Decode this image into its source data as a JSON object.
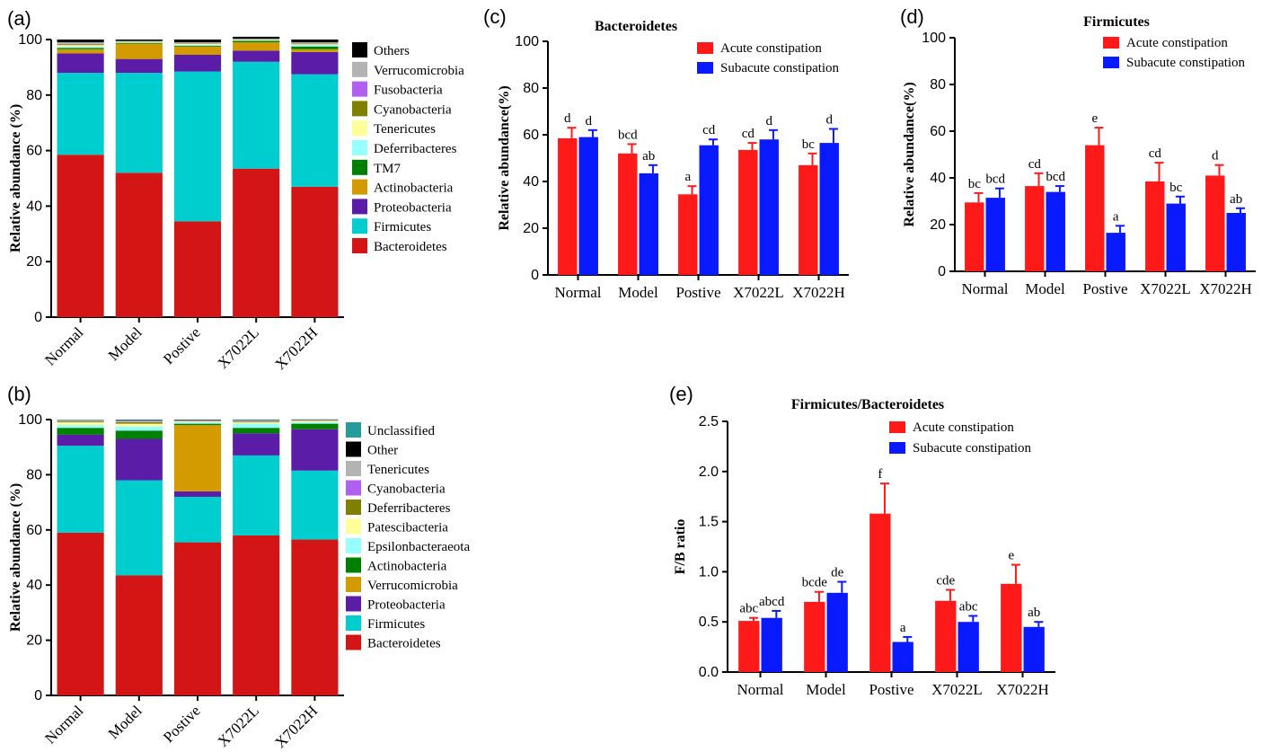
{
  "chart_data": [
    {
      "id": "a",
      "panel_label": "(a)",
      "type": "bar",
      "stacked": true,
      "ylabel": "Relative abundance (%)",
      "ylim": [
        0,
        100
      ],
      "yticks": [
        0,
        20,
        40,
        60,
        80,
        100
      ],
      "categories": [
        "Normal",
        "Model",
        "Postive",
        "X7022L",
        "X7022H"
      ],
      "legend_position": "right",
      "series": [
        {
          "name": "Bacteroidetes",
          "color": "#d41515",
          "values": [
            58.5,
            52,
            34.5,
            53.5,
            47
          ]
        },
        {
          "name": "Firmicutes",
          "color": "#00cdcd",
          "values": [
            29.5,
            36,
            54,
            38.5,
            40.5
          ]
        },
        {
          "name": "Proteobacteria",
          "color": "#5b1ca7",
          "values": [
            7,
            5,
            6,
            4,
            8
          ]
        },
        {
          "name": "Actinobacteria",
          "color": "#d39b00",
          "values": [
            1.5,
            5.5,
            3,
            3,
            1
          ]
        },
        {
          "name": "TM7",
          "color": "#008000",
          "values": [
            0.5,
            0.3,
            0.3,
            0.5,
            1
          ]
        },
        {
          "name": "Deferribacteres",
          "color": "#98ffff",
          "values": [
            0.5,
            0.2,
            0.3,
            0.2,
            0.5
          ]
        },
        {
          "name": "Tenericutes",
          "color": "#ffff99",
          "values": [
            0.5,
            0.2,
            0.3,
            0.2,
            0.3
          ]
        },
        {
          "name": "Cyanobacteria",
          "color": "#808000",
          "values": [
            0.3,
            0.1,
            0.1,
            0.1,
            0.2
          ]
        },
        {
          "name": "Fusobacteria",
          "color": "#b15ff0",
          "values": [
            0.1,
            0.1,
            0.1,
            0.1,
            0.1
          ]
        },
        {
          "name": "Verrucomicrobia",
          "color": "#b3b3b3",
          "values": [
            0.6,
            0.1,
            0.4,
            0.2,
            0.4
          ]
        },
        {
          "name": "Others",
          "color": "#000000",
          "values": [
            1,
            0.5,
            1,
            0.7,
            1
          ]
        }
      ]
    },
    {
      "id": "b",
      "panel_label": "(b)",
      "type": "bar",
      "stacked": true,
      "ylabel": "Relative abundance (%)",
      "ylim": [
        0,
        100
      ],
      "yticks": [
        0,
        20,
        40,
        60,
        80,
        100
      ],
      "categories": [
        "Normal",
        "Model",
        "Postive",
        "X7022L",
        "X7022H"
      ],
      "legend_position": "right",
      "series": [
        {
          "name": "Bacteroidetes",
          "color": "#d41515",
          "values": [
            59,
            43.5,
            55.5,
            58,
            56.5
          ]
        },
        {
          "name": "Firmicutes",
          "color": "#00cdcd",
          "values": [
            31.5,
            34.5,
            16.5,
            29,
            25
          ]
        },
        {
          "name": "Proteobacteria",
          "color": "#5b1ca7",
          "values": [
            4,
            15,
            2,
            8,
            15
          ]
        },
        {
          "name": "Verrucomicrobia",
          "color": "#d39b00",
          "values": [
            0,
            0,
            24,
            0,
            0
          ]
        },
        {
          "name": "Actinobacteria",
          "color": "#008000",
          "values": [
            2.5,
            3,
            0.5,
            2,
            2
          ]
        },
        {
          "name": "Epsilonbacteraeota",
          "color": "#98ffff",
          "values": [
            1,
            1.5,
            0.5,
            1.5,
            0.5
          ]
        },
        {
          "name": "Patescibacteria",
          "color": "#ffff99",
          "values": [
            1,
            1,
            0.3,
            0.5,
            0.5
          ]
        },
        {
          "name": "Deferribacteres",
          "color": "#808000",
          "values": [
            0.3,
            0.5,
            0.1,
            0.2,
            0.1
          ]
        },
        {
          "name": "Cyanobacteria",
          "color": "#b15ff0",
          "values": [
            0.1,
            0.1,
            0.1,
            0.1,
            0.1
          ]
        },
        {
          "name": "Tenericutes",
          "color": "#b3b3b3",
          "values": [
            0.4,
            0.5,
            0.2,
            0.4,
            0.2
          ]
        },
        {
          "name": "Other",
          "color": "#000000",
          "values": [
            0.1,
            0.2,
            0.2,
            0.1,
            0.1
          ]
        },
        {
          "name": "Unclassified",
          "color": "#259b9b",
          "values": [
            0.1,
            0.2,
            0.1,
            0.2,
            0.1
          ]
        }
      ]
    },
    {
      "id": "c",
      "panel_label": "(c)",
      "type": "bar",
      "title": "Bacteroidetes",
      "ylabel": "Relative abundance(%)",
      "ylim": [
        0,
        100
      ],
      "yticks": [
        0,
        20,
        40,
        60,
        80,
        100
      ],
      "categories": [
        "Normal",
        "Model",
        "Postive",
        "X7022L",
        "X7022H"
      ],
      "legend_position": "top-right",
      "series": [
        {
          "name": "Acute constipation",
          "color": "#ff1a1a",
          "values": [
            58.5,
            52,
            34.5,
            53.5,
            47
          ],
          "errors": [
            4.5,
            4,
            3.5,
            3,
            5
          ],
          "labels": [
            "d",
            "bcd",
            "a",
            "cd",
            "bc"
          ]
        },
        {
          "name": "Subacute constipation",
          "color": "#0a1aff",
          "values": [
            59,
            43.5,
            55.5,
            58,
            56.5
          ],
          "errors": [
            3,
            3.5,
            2.5,
            4,
            6
          ],
          "labels": [
            "d",
            "ab",
            "cd",
            "d",
            "d"
          ]
        }
      ]
    },
    {
      "id": "d",
      "panel_label": "(d)",
      "type": "bar",
      "title": "Firmicutes",
      "ylabel": "Relative abundance(%)",
      "ylim": [
        0,
        100
      ],
      "yticks": [
        0,
        20,
        40,
        60,
        80,
        100
      ],
      "categories": [
        "Normal",
        "Model",
        "Postive",
        "X7022L",
        "X7022H"
      ],
      "legend_position": "top-right",
      "series": [
        {
          "name": "Acute constipation",
          "color": "#ff1a1a",
          "values": [
            29.5,
            36.5,
            54,
            38.5,
            41
          ],
          "errors": [
            4,
            5.5,
            7.5,
            8,
            4.5
          ],
          "labels": [
            "bc",
            "cd",
            "e",
            "cd",
            "d"
          ]
        },
        {
          "name": "Subacute constipation",
          "color": "#0a1aff",
          "values": [
            31.5,
            34,
            16.5,
            29,
            25
          ],
          "errors": [
            4,
            2.5,
            3,
            3,
            2
          ],
          "labels": [
            "bcd",
            "bcd",
            "a",
            "bc",
            "ab"
          ]
        }
      ]
    },
    {
      "id": "e",
      "panel_label": "(e)",
      "type": "bar",
      "title": "Firmicutes/Bacteroidetes",
      "ylabel": "F/B ratio",
      "ylim": [
        0,
        2.5
      ],
      "yticks": [
        "0.0",
        "0.5",
        "1.0",
        "1.5",
        "2.0",
        "2.5"
      ],
      "categories": [
        "Normal",
        "Model",
        "Postive",
        "X7022L",
        "X7022H"
      ],
      "legend_position": "top-right",
      "series": [
        {
          "name": "Acute constipation",
          "color": "#ff1a1a",
          "values": [
            0.51,
            0.7,
            1.58,
            0.71,
            0.88
          ],
          "errors": [
            0.03,
            0.1,
            0.3,
            0.11,
            0.19
          ],
          "labels": [
            "abc",
            "bcde",
            "f",
            "cde",
            "e"
          ]
        },
        {
          "name": "Subacute constipation",
          "color": "#0a1aff",
          "values": [
            0.54,
            0.79,
            0.3,
            0.5,
            0.45
          ],
          "errors": [
            0.07,
            0.11,
            0.05,
            0.06,
            0.05
          ],
          "labels": [
            "abcd",
            "de",
            "a",
            "abc",
            "ab"
          ]
        }
      ]
    }
  ]
}
